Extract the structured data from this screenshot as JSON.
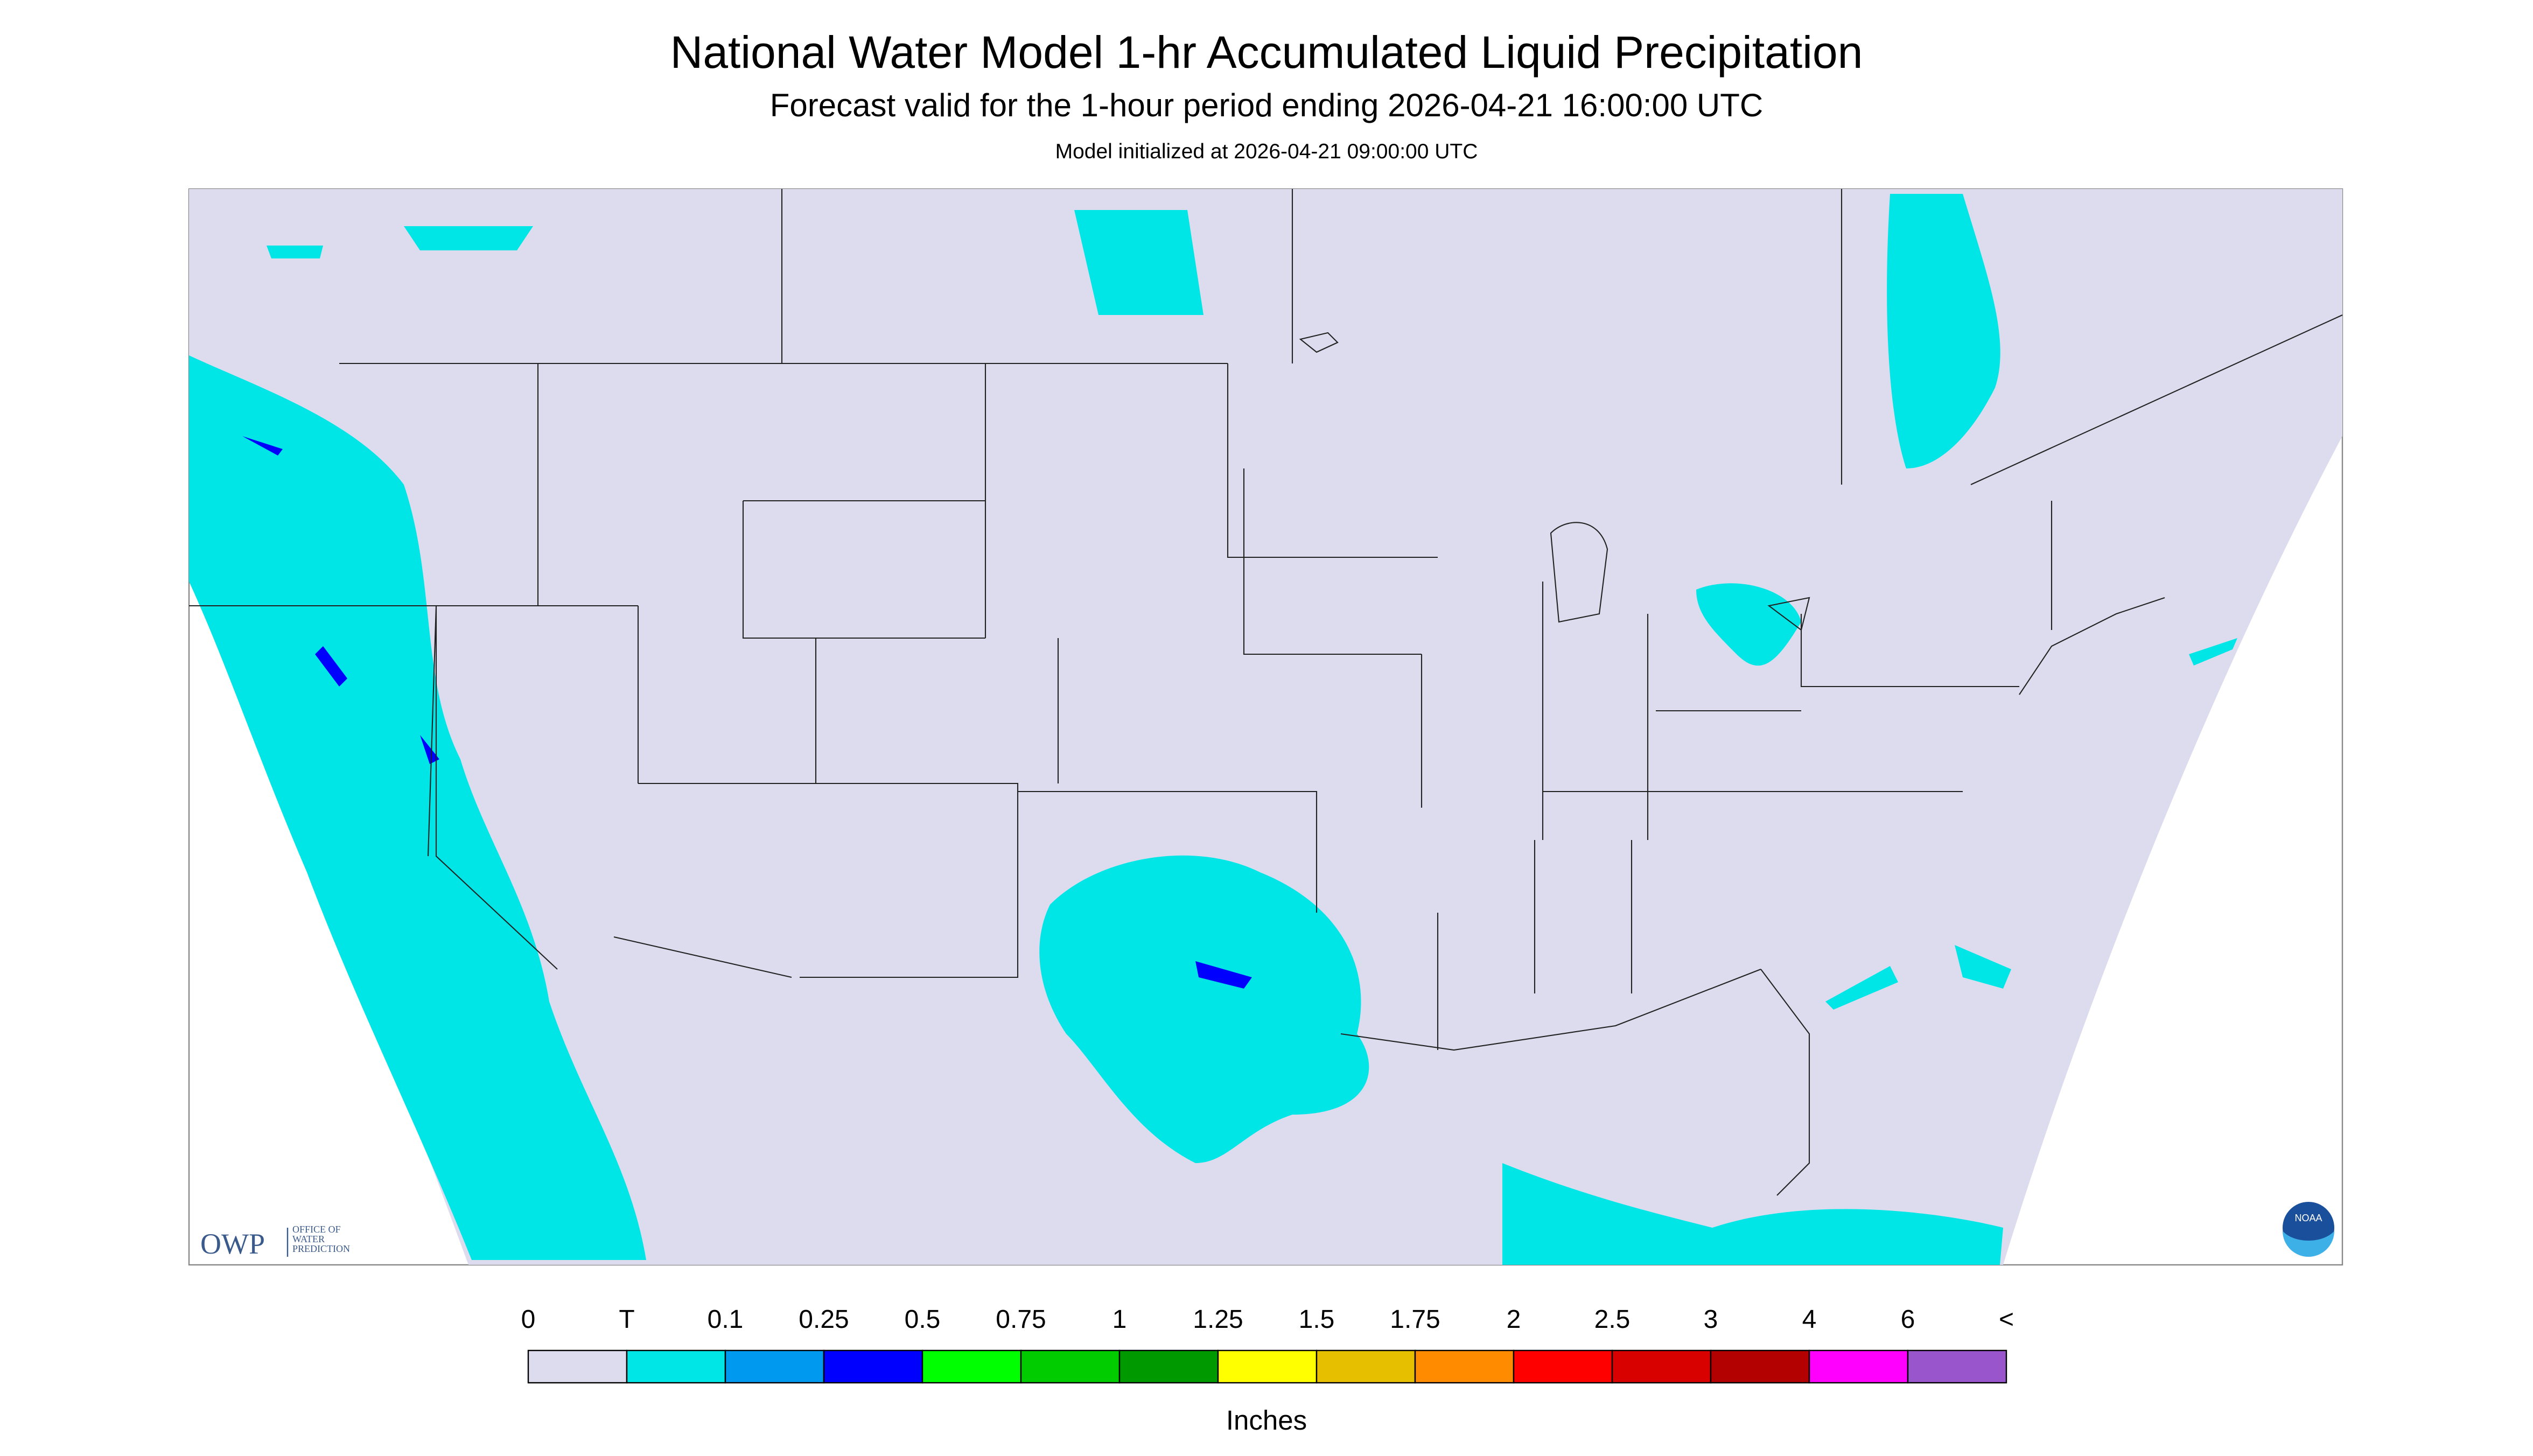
{
  "header": {
    "title": "National Water Model 1-hr Accumulated Liquid Precipitation",
    "subtitle": "Forecast valid for the 1-hour period ending 2026-04-21 16:00:00 UTC",
    "init": "Model initialized at 2026-04-21 09:00:00 UTC"
  },
  "legend": {
    "labels": [
      "0",
      "T",
      "0.1",
      "0.25",
      "0.5",
      "0.75",
      "1",
      "1.25",
      "1.5",
      "1.75",
      "2",
      "2.5",
      "3",
      "4",
      "6",
      "<"
    ],
    "colors": [
      "#dcdcee",
      "#00e6e6",
      "#0099f0",
      "#0000ff",
      "#00ff00",
      "#00cc00",
      "#009900",
      "#ffff00",
      "#e6c000",
      "#ff8c00",
      "#ff0000",
      "#d90000",
      "#b30000",
      "#ff00ff",
      "#9955cc"
    ],
    "unit": "Inches"
  },
  "logos": {
    "owp": "OWP",
    "owp_text": [
      "OFFICE OF",
      "WATER",
      "PREDICTION"
    ],
    "noaa": "NOAA"
  }
}
